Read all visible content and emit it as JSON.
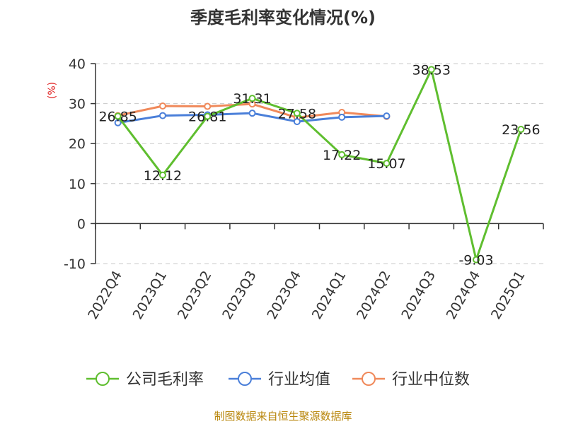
{
  "chart_data": {
    "type": "line",
    "title": "季度毛利率变化情况(%)",
    "unit_label": "(%)",
    "categories": [
      "2022Q4",
      "2023Q1",
      "2023Q2",
      "2023Q3",
      "2023Q4",
      "2024Q1",
      "2024Q2",
      "2024Q3",
      "2024Q4",
      "2025Q1"
    ],
    "ylim": [
      -10,
      40
    ],
    "yticks": [
      40,
      30,
      20,
      10,
      0,
      -10
    ],
    "grid": "horizontal-dashed",
    "legend_position": "bottom",
    "series": [
      {
        "name": "公司毛利率",
        "color": "#5fbe2f",
        "values": [
          26.85,
          12.12,
          26.81,
          31.31,
          27.58,
          17.22,
          15.07,
          38.53,
          -9.03,
          23.56
        ],
        "labels": [
          "26.85",
          "12.12",
          "26.81",
          "31.31",
          "27.58",
          "17.22",
          "15.07",
          "38.53",
          "-9.03",
          "23.56"
        ]
      },
      {
        "name": "行业均值",
        "color": "#4a7fd9",
        "values": [
          25.2,
          27.0,
          27.2,
          27.6,
          25.5,
          26.6,
          26.9,
          null,
          null,
          null
        ]
      },
      {
        "name": "行业中位数",
        "color": "#f0895a",
        "values": [
          27.0,
          29.4,
          29.3,
          29.9,
          26.5,
          27.8,
          26.8,
          null,
          null,
          null
        ]
      }
    ]
  },
  "source": "制图数据来自恒生聚源数据库"
}
